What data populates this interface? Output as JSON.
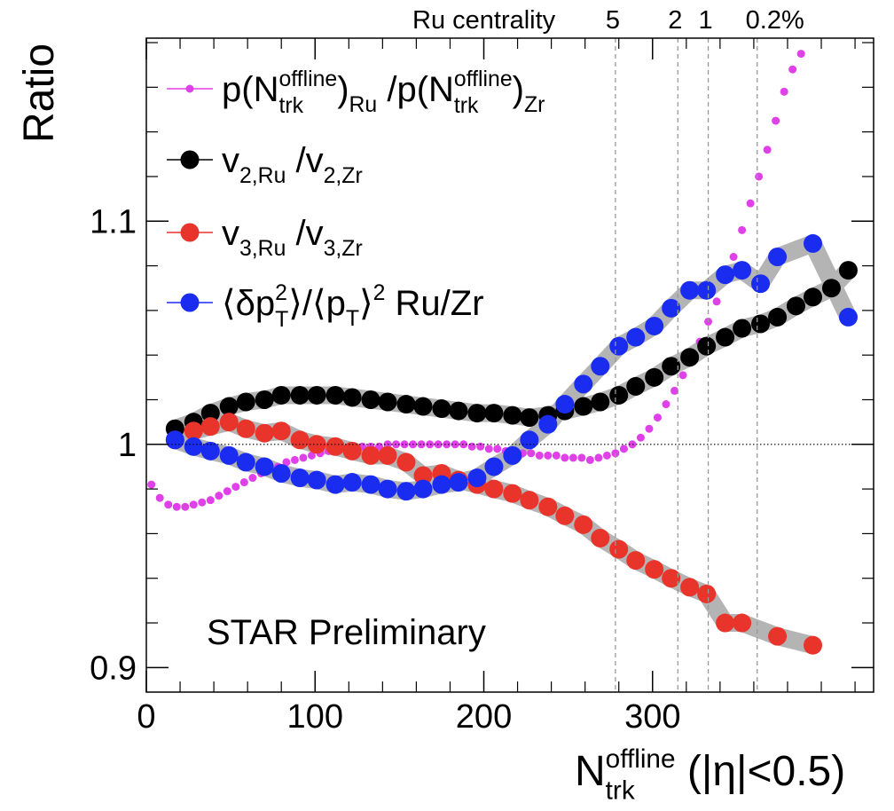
{
  "chart_data": {
    "type": "scatter",
    "y_label": "Ratio",
    "x_label": [
      "N",
      "offline",
      "trk",
      " (|η|<0.5)"
    ],
    "annotation": "STAR Preliminary",
    "centrality_title": "Ru centrality",
    "centrality_lines": [
      {
        "value": 278,
        "label": "5"
      },
      {
        "value": 315,
        "label": "2"
      },
      {
        "value": 333,
        "label": "1"
      },
      {
        "value": 362,
        "label": "0.2%"
      }
    ],
    "reference_line": 1,
    "xlim": [
      0,
      431
    ],
    "ylim": [
      0.889,
      1.182
    ],
    "xticks": [
      0,
      100,
      200,
      300
    ],
    "yticks": [
      0.9,
      1,
      1.1
    ],
    "xminorticks": [
      20,
      40,
      60,
      80,
      120,
      140,
      160,
      180,
      220,
      240,
      260,
      280,
      320,
      340,
      360,
      380,
      400,
      420
    ],
    "yminorticks": [
      0.92,
      0.94,
      0.96,
      0.98,
      1.02,
      1.04,
      1.06,
      1.08,
      1.12,
      1.14,
      1.16,
      1.18
    ],
    "series": [
      {
        "name": [
          "p(N",
          "offline",
          "trk",
          ")",
          "Ru",
          " /p(N",
          "offline",
          "trk",
          ")",
          "Zr"
        ],
        "color": "#e040e8",
        "marker": "small",
        "band": false,
        "x": [
          3,
          8,
          13,
          18,
          23,
          28,
          33,
          38,
          43,
          48,
          53,
          58,
          63,
          68,
          73,
          78,
          83,
          88,
          93,
          98,
          103,
          108,
          113,
          118,
          123,
          128,
          133,
          138,
          143,
          148,
          153,
          158,
          163,
          168,
          173,
          178,
          183,
          188,
          193,
          198,
          203,
          208,
          213,
          218,
          223,
          228,
          233,
          238,
          243,
          248,
          253,
          258,
          263,
          268,
          273,
          278,
          283,
          288,
          293,
          298,
          303,
          308,
          313,
          318,
          323,
          328,
          333,
          338,
          343,
          348,
          353,
          358,
          363,
          368,
          373,
          378,
          383,
          388
        ],
        "values": [
          0.982,
          0.976,
          0.973,
          0.972,
          0.972,
          0.973,
          0.974,
          0.975,
          0.977,
          0.979,
          0.981,
          0.983,
          0.985,
          0.987,
          0.989,
          0.99,
          0.992,
          0.993,
          0.994,
          0.995,
          0.996,
          0.997,
          0.998,
          0.998,
          0.999,
          0.999,
          0.999,
          0.999,
          1.0,
          1.0,
          1.0,
          1.0,
          1.0,
          1.0,
          1.0,
          1.0,
          1.0,
          1.0,
          0.999,
          0.999,
          0.998,
          0.998,
          0.997,
          0.997,
          0.996,
          0.996,
          0.995,
          0.995,
          0.995,
          0.994,
          0.994,
          0.994,
          0.993,
          0.994,
          0.995,
          0.996,
          0.998,
          1.0,
          1.003,
          1.007,
          1.012,
          1.018,
          1.024,
          1.031,
          1.038,
          1.046,
          1.055,
          1.064,
          1.074,
          1.084,
          1.096,
          1.108,
          1.12,
          1.132,
          1.145,
          1.158,
          1.168,
          1.175
        ]
      },
      {
        "name": [
          "v",
          "2,Ru",
          " /v",
          "2,Zr"
        ],
        "color": "#000000",
        "marker": "large",
        "band": true,
        "x": [
          17,
          28,
          38,
          49,
          59,
          70,
          80,
          91,
          101,
          112,
          122,
          133,
          143,
          154,
          164,
          175,
          185,
          196,
          206,
          217,
          227,
          238,
          248,
          259,
          269,
          280,
          290,
          301,
          311,
          322,
          332,
          343,
          353,
          364,
          374,
          385,
          395,
          406,
          416
        ],
        "values": [
          1.007,
          1.01,
          1.014,
          1.017,
          1.019,
          1.02,
          1.022,
          1.022,
          1.022,
          1.022,
          1.021,
          1.02,
          1.019,
          1.018,
          1.017,
          1.016,
          1.015,
          1.014,
          1.014,
          1.013,
          1.012,
          1.013,
          1.015,
          1.017,
          1.019,
          1.022,
          1.026,
          1.03,
          1.035,
          1.039,
          1.044,
          1.048,
          1.052,
          1.054,
          1.057,
          1.062,
          1.066,
          1.07,
          1.078
        ]
      },
      {
        "name": [
          "v",
          "3,Ru",
          " /v",
          "3,Zr"
        ],
        "color": "#e8342a",
        "marker": "large",
        "band": true,
        "x": [
          17,
          28,
          38,
          49,
          59,
          70,
          80,
          91,
          101,
          112,
          122,
          133,
          143,
          154,
          164,
          175,
          185,
          196,
          206,
          217,
          227,
          238,
          248,
          259,
          269,
          280,
          290,
          301,
          311,
          322,
          332,
          343,
          353,
          374,
          395
        ],
        "values": [
          1.002,
          1.006,
          1.008,
          1.01,
          1.007,
          1.005,
          1.006,
          1.002,
          1.0,
          0.999,
          0.997,
          0.995,
          0.995,
          0.992,
          0.986,
          0.987,
          0.984,
          0.982,
          0.98,
          0.978,
          0.975,
          0.972,
          0.968,
          0.964,
          0.958,
          0.953,
          0.948,
          0.944,
          0.94,
          0.936,
          0.933,
          0.92,
          0.92,
          0.914,
          0.91
        ]
      },
      {
        "name": [
          "⟨δp",
          "2",
          "T",
          "⟩/⟨p",
          "T",
          "⟩",
          "2",
          " Ru/Zr"
        ],
        "color": "#1a2cf0",
        "marker": "large",
        "band": true,
        "x": [
          17,
          28,
          38,
          49,
          59,
          70,
          80,
          91,
          101,
          112,
          122,
          133,
          143,
          154,
          164,
          175,
          185,
          196,
          206,
          217,
          227,
          238,
          248,
          259,
          269,
          280,
          290,
          301,
          311,
          322,
          332,
          343,
          353,
          364,
          374,
          395,
          416
        ],
        "values": [
          1.002,
          0.999,
          0.997,
          0.995,
          0.992,
          0.99,
          0.987,
          0.985,
          0.984,
          0.982,
          0.983,
          0.982,
          0.98,
          0.979,
          0.98,
          0.982,
          0.983,
          0.985,
          0.99,
          0.995,
          1.002,
          1.009,
          1.018,
          1.027,
          1.035,
          1.044,
          1.048,
          1.053,
          1.061,
          1.069,
          1.069,
          1.076,
          1.078,
          1.072,
          1.084,
          1.09,
          1.057
        ]
      }
    ]
  }
}
